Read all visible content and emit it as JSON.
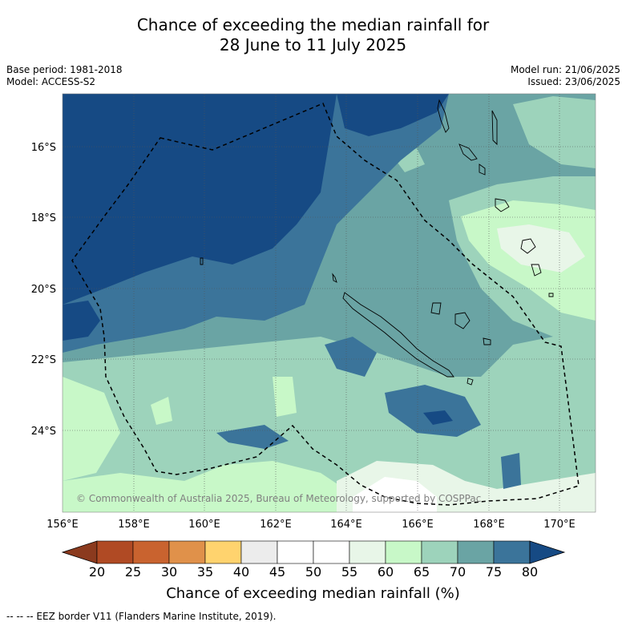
{
  "title": {
    "line1": "Chance of exceeding the median rainfall for",
    "line2": "28 June to 11 July 2025"
  },
  "meta": {
    "base_period": "Base period: 1981-2018",
    "model": "Model: ACCESS-S2",
    "model_run": "Model run: 21/06/2025",
    "issued": "Issued: 23/06/2025"
  },
  "map": {
    "lat_ticks": [
      "16°S",
      "18°S",
      "20°S",
      "22°S",
      "24°S"
    ],
    "lon_ticks": [
      "156°E",
      "158°E",
      "160°E",
      "162°E",
      "164°E",
      "166°E",
      "168°E",
      "170°E"
    ],
    "copyright": "© Commonwealth of Australia 2025, Bureau of Meteorology, supported by COSPPac"
  },
  "colorbar": {
    "labels": [
      "20",
      "25",
      "30",
      "35",
      "40",
      "45",
      "50",
      "55",
      "60",
      "65",
      "70",
      "75",
      "80"
    ],
    "title": "Chance of exceeding median rainfall (%)",
    "colors": [
      "#8b3a1e",
      "#b04a24",
      "#c9632f",
      "#e0914a",
      "#ffd36e",
      "#ececec",
      "#ffffff",
      "#ffffff",
      "#e8f6e8",
      "#c8f8c8",
      "#9dd3bb",
      "#6aa4a4",
      "#3b749a",
      "#164a84"
    ]
  },
  "legend": {
    "eez": "-- -- -- EEZ border V11 (Flanders Marine Institute, 2019)."
  }
}
